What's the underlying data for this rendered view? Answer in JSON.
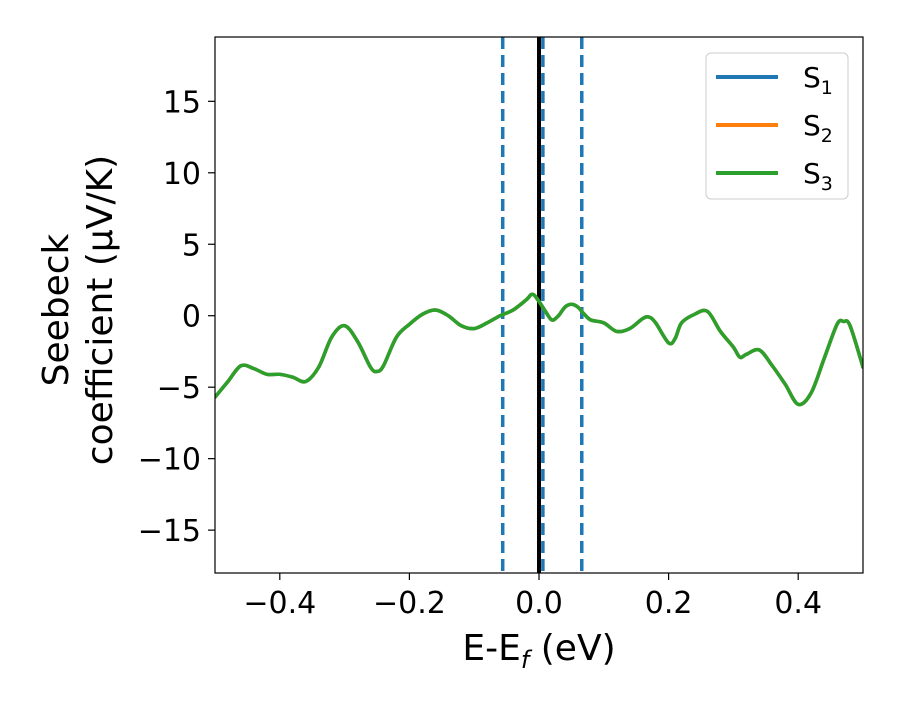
{
  "chart_data": {
    "type": "line",
    "title": "",
    "xlabel": "E-E",
    "xlabel_sub": "f",
    "xlabel_unit": " (eV)",
    "ylabel_line1": "Seebeck",
    "ylabel_line2": "coefficient  (μV/K)",
    "xlim": [
      -0.5,
      0.5
    ],
    "ylim": [
      -18,
      19.5
    ],
    "xticks": [
      -0.4,
      -0.2,
      0.0,
      0.2,
      0.4
    ],
    "xtick_labels": [
      "−0.4",
      "−0.2",
      "0.0",
      "0.2",
      "0.4"
    ],
    "yticks": [
      -15,
      -10,
      -5,
      0,
      5,
      10,
      15
    ],
    "ytick_labels": [
      "−15",
      "−10",
      "−5",
      "0",
      "5",
      "10",
      "15"
    ],
    "grid": false,
    "legend_position": "top-right",
    "series": [
      {
        "name": "S",
        "name_sub": "1",
        "color": "#1f77b4",
        "x": [
          -0.5,
          -0.48,
          -0.46,
          -0.44,
          -0.42,
          -0.4,
          -0.38,
          -0.36,
          -0.34,
          -0.32,
          -0.3,
          -0.28,
          -0.26,
          -0.25,
          -0.24,
          -0.22,
          -0.2,
          -0.18,
          -0.16,
          -0.14,
          -0.12,
          -0.1,
          -0.08,
          -0.06,
          -0.04,
          -0.02,
          -0.01,
          0.0,
          0.01,
          0.02,
          0.03,
          0.04,
          0.05,
          0.06,
          0.07,
          0.08,
          0.1,
          0.12,
          0.14,
          0.16,
          0.17,
          0.18,
          0.2,
          0.21,
          0.22,
          0.24,
          0.26,
          0.28,
          0.3,
          0.31,
          0.32,
          0.34,
          0.36,
          0.38,
          0.4,
          0.42,
          0.44,
          0.46,
          0.47,
          0.48,
          0.5
        ],
        "y": [
          -5.7,
          -4.6,
          -3.5,
          -3.7,
          -4.1,
          -4.1,
          -4.3,
          -4.6,
          -3.6,
          -1.5,
          -0.7,
          -1.8,
          -3.6,
          -3.9,
          -3.5,
          -1.5,
          -0.6,
          0.1,
          0.4,
          0.0,
          -0.7,
          -0.9,
          -0.5,
          0.0,
          0.4,
          1.1,
          1.5,
          1.0,
          0.3,
          -0.3,
          0.0,
          0.6,
          0.8,
          0.6,
          0.1,
          -0.3,
          -0.5,
          -1.1,
          -0.9,
          -0.2,
          -0.1,
          -0.5,
          -1.9,
          -1.6,
          -0.5,
          0.1,
          0.3,
          -1.1,
          -2.2,
          -2.9,
          -2.7,
          -2.4,
          -3.5,
          -4.8,
          -6.2,
          -5.4,
          -3.0,
          -0.6,
          -0.4,
          -0.7,
          -3.6
        ]
      },
      {
        "name": "S",
        "name_sub": "2",
        "color": "#ff7f0e",
        "x": [
          -0.5,
          -0.48,
          -0.46,
          -0.44,
          -0.42,
          -0.4,
          -0.38,
          -0.36,
          -0.34,
          -0.32,
          -0.3,
          -0.28,
          -0.26,
          -0.25,
          -0.24,
          -0.22,
          -0.2,
          -0.18,
          -0.16,
          -0.14,
          -0.12,
          -0.1,
          -0.08,
          -0.06,
          -0.04,
          -0.02,
          -0.01,
          0.0,
          0.01,
          0.02,
          0.03,
          0.04,
          0.05,
          0.06,
          0.07,
          0.08,
          0.1,
          0.12,
          0.14,
          0.16,
          0.17,
          0.18,
          0.2,
          0.21,
          0.22,
          0.24,
          0.26,
          0.28,
          0.3,
          0.31,
          0.32,
          0.34,
          0.36,
          0.38,
          0.4,
          0.42,
          0.44,
          0.46,
          0.47,
          0.48,
          0.5
        ],
        "y": [
          -5.7,
          -4.6,
          -3.5,
          -3.7,
          -4.1,
          -4.1,
          -4.3,
          -4.6,
          -3.6,
          -1.5,
          -0.7,
          -1.8,
          -3.6,
          -3.9,
          -3.5,
          -1.5,
          -0.6,
          0.1,
          0.4,
          0.0,
          -0.7,
          -0.9,
          -0.5,
          0.0,
          0.4,
          1.1,
          1.5,
          1.0,
          0.3,
          -0.3,
          0.0,
          0.6,
          0.8,
          0.6,
          0.1,
          -0.3,
          -0.5,
          -1.1,
          -0.9,
          -0.2,
          -0.1,
          -0.5,
          -1.9,
          -1.6,
          -0.5,
          0.1,
          0.3,
          -1.1,
          -2.2,
          -2.9,
          -2.7,
          -2.4,
          -3.5,
          -4.8,
          -6.2,
          -5.4,
          -3.0,
          -0.6,
          -0.4,
          -0.7,
          -3.6
        ]
      },
      {
        "name": "S",
        "name_sub": "3",
        "color": "#2ca02c",
        "x": [
          -0.5,
          -0.48,
          -0.46,
          -0.44,
          -0.42,
          -0.4,
          -0.38,
          -0.36,
          -0.34,
          -0.32,
          -0.3,
          -0.28,
          -0.26,
          -0.25,
          -0.24,
          -0.22,
          -0.2,
          -0.18,
          -0.16,
          -0.14,
          -0.12,
          -0.1,
          -0.08,
          -0.06,
          -0.04,
          -0.02,
          -0.01,
          0.0,
          0.01,
          0.02,
          0.03,
          0.04,
          0.05,
          0.06,
          0.07,
          0.08,
          0.1,
          0.12,
          0.14,
          0.16,
          0.17,
          0.18,
          0.2,
          0.21,
          0.22,
          0.24,
          0.26,
          0.28,
          0.3,
          0.31,
          0.32,
          0.34,
          0.36,
          0.38,
          0.4,
          0.42,
          0.44,
          0.46,
          0.47,
          0.48,
          0.5
        ],
        "y": [
          -5.7,
          -4.6,
          -3.5,
          -3.7,
          -4.1,
          -4.1,
          -4.3,
          -4.6,
          -3.6,
          -1.5,
          -0.7,
          -1.8,
          -3.6,
          -3.9,
          -3.5,
          -1.5,
          -0.6,
          0.1,
          0.4,
          0.0,
          -0.7,
          -0.9,
          -0.5,
          0.0,
          0.4,
          1.1,
          1.5,
          1.0,
          0.3,
          -0.3,
          0.0,
          0.6,
          0.8,
          0.6,
          0.1,
          -0.3,
          -0.5,
          -1.1,
          -0.9,
          -0.2,
          -0.1,
          -0.5,
          -1.9,
          -1.6,
          -0.5,
          0.1,
          0.3,
          -1.1,
          -2.2,
          -2.9,
          -2.7,
          -2.4,
          -3.5,
          -4.8,
          -6.2,
          -5.4,
          -3.0,
          -0.6,
          -0.4,
          -0.7,
          -3.6
        ]
      }
    ],
    "vlines": [
      {
        "x": -0.056,
        "style": "dashed",
        "color": "#1f77b4"
      },
      {
        "x": 0.006,
        "style": "dashed",
        "color": "#1f77b4"
      },
      {
        "x": 0.066,
        "style": "dashed",
        "color": "#1f77b4"
      },
      {
        "x": 0.0,
        "style": "solid",
        "color": "#000000"
      }
    ]
  }
}
